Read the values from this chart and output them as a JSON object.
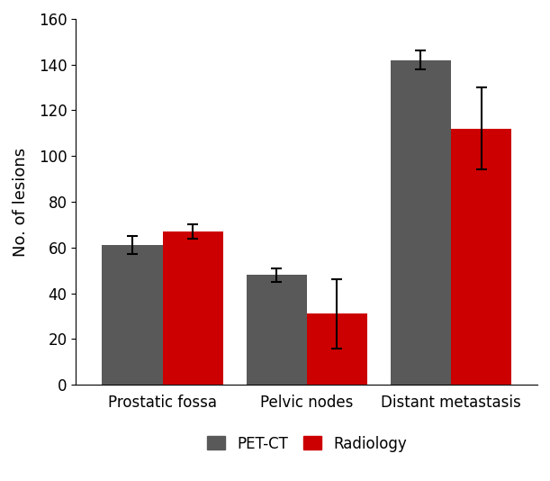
{
  "categories": [
    "Prostatic fossa",
    "Pelvic nodes",
    "Distant metastasis"
  ],
  "petct_values": [
    61,
    48,
    142
  ],
  "radiology_values": [
    67,
    31,
    112
  ],
  "petct_errors": [
    4,
    3,
    4
  ],
  "radiology_errors": [
    3,
    15,
    18
  ],
  "petct_color": "#595959",
  "radiology_color": "#cc0000",
  "ylabel": "No. of lesions",
  "ylim": [
    0,
    160
  ],
  "yticks": [
    0,
    20,
    40,
    60,
    80,
    100,
    120,
    140,
    160
  ],
  "legend_petct": "PET-CT",
  "legend_radiology": "Radiology",
  "bar_width": 0.42,
  "figsize": [
    6.11,
    5.34
  ],
  "dpi": 100,
  "background_color": "#ffffff",
  "spine_color": "#000000",
  "error_capsize": 4,
  "error_linewidth": 1.5,
  "error_color": "#000000",
  "tick_fontsize": 12,
  "label_fontsize": 13,
  "legend_fontsize": 12
}
